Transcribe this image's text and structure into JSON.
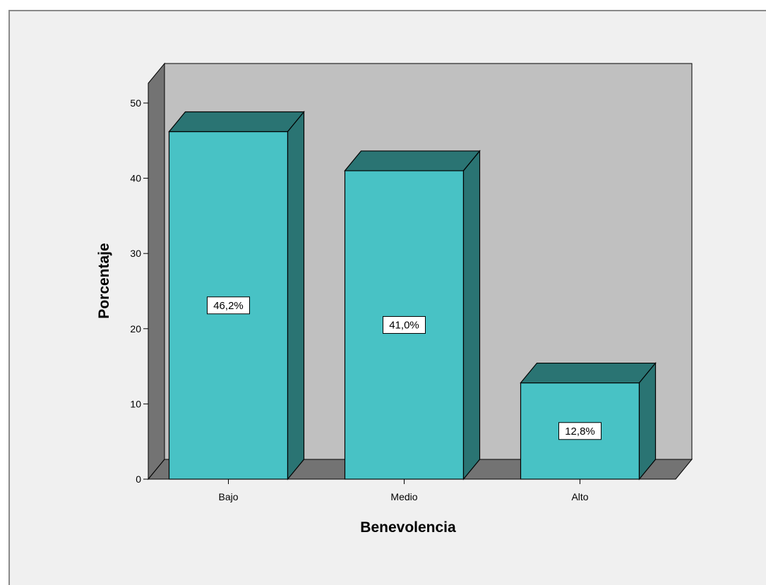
{
  "chart_data": {
    "type": "bar",
    "xlabel": "Benevolencia",
    "ylabel": "Porcentaje",
    "categories": [
      "Bajo",
      "Medio",
      "Alto"
    ],
    "values": [
      46.2,
      41.0,
      12.8
    ],
    "data_labels": [
      "46,2%",
      "41,0%",
      "12,8%"
    ],
    "ylim": [
      0,
      50
    ],
    "yticks": [
      "0",
      "10",
      "20",
      "30",
      "40",
      "50"
    ],
    "grid": false,
    "legend": "none",
    "style": "3d",
    "colors": {
      "bar_front": "#48c2c5",
      "bar_side": "#2a7473",
      "wall_back": "#c0c0c0",
      "wall_side_floor": "#737373",
      "background": "#f0f0f0"
    }
  }
}
